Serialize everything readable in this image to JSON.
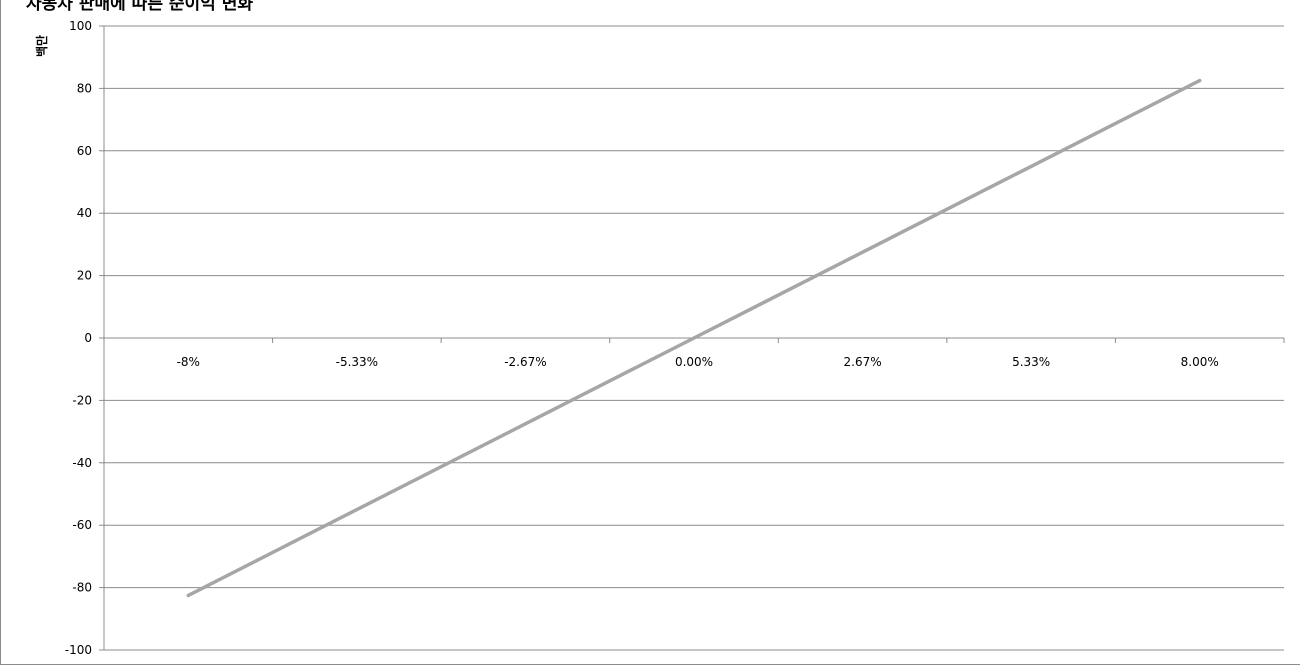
{
  "chart_data": {
    "type": "line",
    "title": "자동차 판매에 따른 순이익 변화",
    "ylabel": "백만",
    "xlabel": "",
    "categories": [
      "-8%",
      "-5.33%",
      "-2.67%",
      "0.00%",
      "2.67%",
      "5.33%",
      "8.00%"
    ],
    "ylim": [
      -100,
      100
    ],
    "yticks": [
      "100",
      "80",
      "60",
      "40",
      "20",
      "0",
      "-20",
      "-40",
      "-60",
      "-80",
      "-100"
    ],
    "grid": true,
    "legend": "none",
    "series": [
      {
        "values": [
          -82.5,
          -55,
          -27.5,
          0,
          27.5,
          55,
          82.5
        ],
        "color": "#a6a6a6"
      }
    ]
  }
}
